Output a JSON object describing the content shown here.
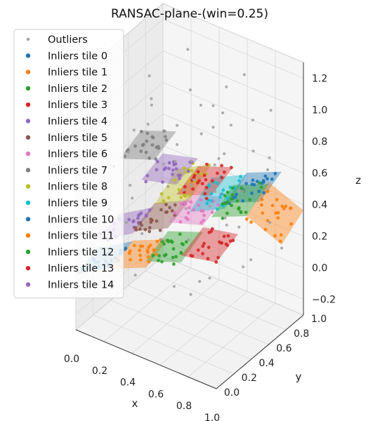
{
  "chart_data": {
    "type": "scatter3d",
    "title": "RANSAC-plane-(win=0.25)",
    "xlabel": "x",
    "ylabel": "y",
    "zlabel": "z",
    "xlim": [
      0,
      1
    ],
    "ylim": [
      0,
      1
    ],
    "zlim": [
      -0.3,
      1.3
    ],
    "x_ticks": [
      "0.0",
      "0.2",
      "0.4",
      "0.6",
      "0.8",
      "1.0"
    ],
    "y_ticks": [
      "0.0",
      "0.2",
      "0.4",
      "0.6",
      "0.8",
      "1.0"
    ],
    "z_ticks": [
      "−0.2",
      "0.0",
      "0.2",
      "0.4",
      "0.6",
      "0.8",
      "1.0",
      "1.2"
    ],
    "z_tick_values": [
      -0.2,
      0,
      0.2,
      0.4,
      0.6,
      0.8,
      1.0,
      1.2
    ],
    "grid": true,
    "legend_position": "upper-left",
    "outliers": {
      "name": "Outliers",
      "color": "#a0a0a0",
      "points": [
        [
          0.05,
          0.1,
          0.95
        ],
        [
          0.12,
          0.65,
          1.05
        ],
        [
          0.2,
          0.3,
          0.55
        ],
        [
          0.27,
          0.85,
          1.18
        ],
        [
          0.33,
          0.15,
          0.1
        ],
        [
          0.38,
          0.55,
          0.88
        ],
        [
          0.42,
          0.9,
          0.72
        ],
        [
          0.48,
          0.25,
          1.02
        ],
        [
          0.52,
          0.7,
          0.35
        ],
        [
          0.57,
          0.4,
          -0.05
        ],
        [
          0.61,
          0.95,
          1.1
        ],
        [
          0.66,
          0.2,
          0.62
        ],
        [
          0.7,
          0.6,
          1.22
        ],
        [
          0.75,
          0.8,
          0.05
        ],
        [
          0.8,
          0.35,
          0.92
        ],
        [
          0.85,
          0.05,
          0.3
        ],
        [
          0.9,
          0.75,
          0.7
        ],
        [
          0.95,
          0.5,
          1.15
        ],
        [
          0.08,
          0.45,
          0.2
        ],
        [
          0.15,
          0.92,
          0.5
        ],
        [
          0.22,
          0.08,
          0.78
        ],
        [
          0.3,
          0.5,
          0.15
        ],
        [
          0.35,
          0.75,
          1.0
        ],
        [
          0.44,
          0.05,
          0.45
        ],
        [
          0.5,
          0.88,
          0.85
        ],
        [
          0.55,
          0.12,
          0.9
        ],
        [
          0.63,
          0.52,
          0.02
        ],
        [
          0.68,
          0.82,
          0.45
        ],
        [
          0.72,
          0.28,
          1.08
        ],
        [
          0.78,
          0.62,
          0.58
        ],
        [
          0.83,
          0.9,
          0.98
        ],
        [
          0.88,
          0.18,
          0.82
        ],
        [
          0.93,
          0.42,
          0.25
        ],
        [
          0.03,
          0.78,
          0.65
        ],
        [
          0.1,
          0.22,
          0.4
        ],
        [
          0.18,
          0.58,
          0.92
        ],
        [
          0.25,
          0.95,
          0.3
        ],
        [
          0.32,
          0.35,
          1.12
        ],
        [
          0.4,
          0.68,
          0.6
        ],
        [
          0.46,
          0.4,
          0.75
        ],
        [
          0.53,
          0.58,
          1.05
        ],
        [
          0.59,
          0.78,
          0.22
        ],
        [
          0.65,
          0.08,
          0.18
        ],
        [
          0.71,
          0.45,
          0.8
        ],
        [
          0.77,
          0.98,
          0.62
        ],
        [
          0.82,
          0.55,
          0.4
        ],
        [
          0.87,
          0.3,
          1.0
        ],
        [
          0.92,
          0.88,
          0.15
        ],
        [
          0.97,
          0.15,
          0.7
        ],
        [
          0.14,
          0.38,
          0.7
        ],
        [
          0.21,
          0.72,
          0.35
        ],
        [
          0.29,
          0.2,
          0.98
        ],
        [
          0.37,
          0.98,
          0.8
        ],
        [
          0.45,
          0.6,
          0.5
        ],
        [
          0.58,
          0.3,
          0.66
        ],
        [
          0.67,
          0.7,
          0.92
        ],
        [
          0.74,
          0.1,
          0.5
        ],
        [
          0.86,
          0.65,
          0.85
        ],
        [
          0.96,
          0.68,
          0.42
        ],
        [
          0.06,
          0.55,
          0.3
        ]
      ]
    },
    "series": [
      {
        "name": "Inliers tile 0",
        "color": "#1f77b4",
        "ix": 0,
        "iy": 0,
        "z0": 0.05,
        "dzdx": 0.55,
        "dzdy": 0.2
      },
      {
        "name": "Inliers tile 1",
        "color": "#ff7f0e",
        "ix": 1,
        "iy": 0,
        "z0": 0.18,
        "dzdx": 0.4,
        "dzdy": 0.25
      },
      {
        "name": "Inliers tile 2",
        "color": "#2ca02c",
        "ix": 2,
        "iy": 0,
        "z0": 0.32,
        "dzdx": 0.35,
        "dzdy": 0.3
      },
      {
        "name": "Inliers tile 3",
        "color": "#d62728",
        "ix": 3,
        "iy": 0,
        "z0": 0.45,
        "dzdx": 0.2,
        "dzdy": 0.25
      },
      {
        "name": "Inliers tile 4",
        "color": "#9467bd",
        "ix": 0,
        "iy": 1,
        "z0": 0.15,
        "dzdx": 0.55,
        "dzdy": 0.2
      },
      {
        "name": "Inliers tile 5",
        "color": "#8c564b",
        "ix": 1,
        "iy": 1,
        "z0": 0.3,
        "dzdx": 0.45,
        "dzdy": 0.25
      },
      {
        "name": "Inliers tile 6",
        "color": "#e377c2",
        "ix": 2,
        "iy": 1,
        "z0": 0.45,
        "dzdx": 0.3,
        "dzdy": 0.25
      },
      {
        "name": "Inliers tile 7",
        "color": "#7f7f7f",
        "ix": 0,
        "iy": 2,
        "z0": 0.55,
        "dzdx": 0.35,
        "dzdy": 0.25
      },
      {
        "name": "Inliers tile 8",
        "color": "#bcbd22",
        "ix": 1,
        "iy": 2,
        "z0": 0.35,
        "dzdx": 0.5,
        "dzdy": 0.45
      },
      {
        "name": "Inliers tile 9",
        "color": "#17becf",
        "ix": 2,
        "iy": 2,
        "z0": 0.4,
        "dzdx": 0.45,
        "dzdy": 0.4
      },
      {
        "name": "Inliers tile 10",
        "color": "#1f77b4",
        "ix": 3,
        "iy": 2,
        "z0": 0.55,
        "dzdx": 0.4,
        "dzdy": 0.3
      },
      {
        "name": "Inliers tile 11",
        "color": "#ff7f0e",
        "ix": 3,
        "iy": 3,
        "z0": 0.35,
        "dzdx": -0.35,
        "dzdy": 0.4
      },
      {
        "name": "Inliers tile 12",
        "color": "#2ca02c",
        "ix": 2,
        "iy": 3,
        "z0": 0.25,
        "dzdx": 0.4,
        "dzdy": 0.35
      },
      {
        "name": "Inliers tile 13",
        "color": "#d62728",
        "ix": 1,
        "iy": 3,
        "z0": 0.3,
        "dzdx": 0.35,
        "dzdy": 0.25
      },
      {
        "name": "Inliers tile 14",
        "color": "#9467bd",
        "ix": 0,
        "iy": 3,
        "z0": 0.3,
        "dzdx": 0.25,
        "dzdy": 0.2
      }
    ]
  }
}
